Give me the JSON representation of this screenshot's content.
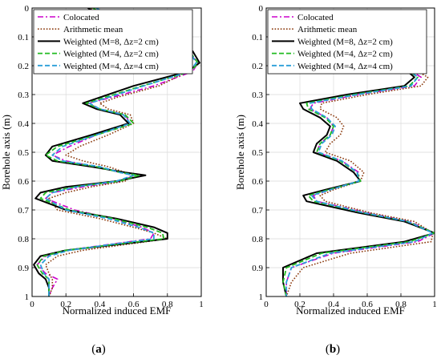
{
  "chart_data": [
    {
      "type": "line",
      "panel_label": "(a)",
      "xlabel": "Normalized induced EMF",
      "ylabel": "Borehole axis (m)",
      "xlim": [
        0,
        1
      ],
      "ylim": [
        1,
        0
      ],
      "y_reversed": true,
      "xticks": [
        "0",
        "0.2",
        "0.4",
        "0.6",
        "0.8",
        "1"
      ],
      "yticks": [
        "0",
        "0.1",
        "0.2",
        "0.3",
        "0.4",
        "0.5",
        "0.6",
        "0.7",
        "0.8",
        "0.9",
        "1"
      ],
      "grid": true,
      "legend_position": "top-left",
      "series": [
        {
          "name": "Colocated",
          "color": "#cc00cc",
          "dash": "dashdot",
          "width": 1.6,
          "x": [
            0.38,
            0.5,
            0.75,
            0.92,
            0.98,
            0.95,
            0.72,
            0.47,
            0.33,
            0.4,
            0.55,
            0.58,
            0.38,
            0.22,
            0.12,
            0.2,
            0.38,
            0.52,
            0.6,
            0.53,
            0.3,
            0.12,
            0.08,
            0.25,
            0.48,
            0.65,
            0.72,
            0.7,
            0.45,
            0.2,
            0.08,
            0.03,
            0.08,
            0.15,
            0.12,
            0.1
          ],
          "y": [
            0,
            0.05,
            0.1,
            0.15,
            0.19,
            0.22,
            0.27,
            0.31,
            0.33,
            0.35,
            0.37,
            0.4,
            0.44,
            0.48,
            0.51,
            0.53,
            0.55,
            0.57,
            0.58,
            0.6,
            0.62,
            0.64,
            0.66,
            0.7,
            0.73,
            0.76,
            0.78,
            0.8,
            0.82,
            0.84,
            0.86,
            0.89,
            0.92,
            0.94,
            0.97,
            1
          ]
        },
        {
          "name": "Arithmetic mean",
          "color": "#8b3a0e",
          "dash": "dotted",
          "width": 1.6,
          "x": [
            0.35,
            0.5,
            0.72,
            0.88,
            0.94,
            0.92,
            0.75,
            0.5,
            0.4,
            0.45,
            0.58,
            0.6,
            0.45,
            0.28,
            0.2,
            0.3,
            0.45,
            0.55,
            0.6,
            0.55,
            0.35,
            0.2,
            0.1,
            0.15,
            0.4,
            0.6,
            0.72,
            0.8,
            0.55,
            0.3,
            0.15,
            0.08,
            0.1,
            0.12,
            0.12,
            0.1
          ],
          "y": [
            0,
            0.05,
            0.1,
            0.15,
            0.19,
            0.22,
            0.27,
            0.31,
            0.33,
            0.35,
            0.37,
            0.4,
            0.44,
            0.48,
            0.51,
            0.53,
            0.55,
            0.57,
            0.58,
            0.6,
            0.62,
            0.64,
            0.66,
            0.7,
            0.73,
            0.76,
            0.78,
            0.8,
            0.82,
            0.84,
            0.86,
            0.89,
            0.92,
            0.94,
            0.97,
            1
          ]
        },
        {
          "name": "Weighted (M=8, Δz=2 cm)",
          "color": "#000000",
          "dash": "solid",
          "width": 2.0,
          "x": [
            0.33,
            0.48,
            0.72,
            0.95,
            0.99,
            0.92,
            0.6,
            0.4,
            0.3,
            0.38,
            0.52,
            0.57,
            0.35,
            0.12,
            0.08,
            0.12,
            0.35,
            0.55,
            0.67,
            0.5,
            0.2,
            0.05,
            0.02,
            0.2,
            0.5,
            0.72,
            0.8,
            0.8,
            0.5,
            0.2,
            0.05,
            0.01,
            0.04,
            0.08,
            0.1,
            0.1
          ],
          "y": [
            0,
            0.05,
            0.1,
            0.15,
            0.19,
            0.22,
            0.27,
            0.31,
            0.33,
            0.35,
            0.37,
            0.4,
            0.44,
            0.48,
            0.51,
            0.53,
            0.55,
            0.57,
            0.58,
            0.6,
            0.62,
            0.64,
            0.66,
            0.7,
            0.73,
            0.76,
            0.78,
            0.8,
            0.82,
            0.84,
            0.86,
            0.89,
            0.92,
            0.94,
            0.97,
            1
          ]
        },
        {
          "name": "Weighted (M=4, Δz=2 cm)",
          "color": "#22bb22",
          "dash": "dashed",
          "width": 1.8,
          "x": [
            0.36,
            0.5,
            0.74,
            0.93,
            0.98,
            0.94,
            0.65,
            0.43,
            0.32,
            0.4,
            0.55,
            0.6,
            0.38,
            0.15,
            0.08,
            0.15,
            0.38,
            0.52,
            0.63,
            0.52,
            0.25,
            0.08,
            0.05,
            0.22,
            0.48,
            0.68,
            0.77,
            0.78,
            0.48,
            0.2,
            0.07,
            0.03,
            0.06,
            0.1,
            0.1,
            0.1
          ],
          "y": [
            0,
            0.05,
            0.1,
            0.15,
            0.19,
            0.22,
            0.27,
            0.31,
            0.33,
            0.35,
            0.37,
            0.4,
            0.44,
            0.48,
            0.51,
            0.53,
            0.55,
            0.57,
            0.58,
            0.6,
            0.62,
            0.64,
            0.66,
            0.7,
            0.73,
            0.76,
            0.78,
            0.8,
            0.82,
            0.84,
            0.86,
            0.89,
            0.92,
            0.94,
            0.97,
            1
          ]
        },
        {
          "name": "Weighted (M=4, Δz=4 cm)",
          "color": "#2b9fd9",
          "dash": "dashed",
          "width": 1.8,
          "x": [
            0.38,
            0.52,
            0.75,
            0.93,
            0.97,
            0.93,
            0.66,
            0.45,
            0.34,
            0.4,
            0.54,
            0.58,
            0.38,
            0.18,
            0.12,
            0.18,
            0.4,
            0.52,
            0.6,
            0.5,
            0.26,
            0.12,
            0.08,
            0.2,
            0.45,
            0.63,
            0.72,
            0.72,
            0.46,
            0.22,
            0.1,
            0.05,
            0.07,
            0.1,
            0.1,
            0.1
          ],
          "y": [
            0,
            0.05,
            0.1,
            0.15,
            0.19,
            0.22,
            0.27,
            0.31,
            0.33,
            0.35,
            0.37,
            0.4,
            0.44,
            0.48,
            0.51,
            0.53,
            0.55,
            0.57,
            0.58,
            0.6,
            0.62,
            0.64,
            0.66,
            0.7,
            0.73,
            0.76,
            0.78,
            0.8,
            0.82,
            0.84,
            0.86,
            0.89,
            0.92,
            0.94,
            0.97,
            1
          ]
        }
      ]
    },
    {
      "type": "line",
      "panel_label": "(b)",
      "xlabel": "Normalized induced EMF",
      "ylabel": "Borehole axis (m)",
      "xlim": [
        0,
        1
      ],
      "ylim": [
        1,
        0
      ],
      "y_reversed": true,
      "xticks": [
        "0",
        "0.2",
        "0.4",
        "0.6",
        "0.8",
        "1"
      ],
      "yticks": [
        "0",
        "0.1",
        "0.2",
        "0.3",
        "0.4",
        "0.5",
        "0.6",
        "0.7",
        "0.8",
        "0.9",
        "1"
      ],
      "grid": true,
      "legend_position": "top-right",
      "series": [
        {
          "name": "Colocated",
          "color": "#cc00cc",
          "dash": "dashdot",
          "width": 1.6,
          "x": [
            0.78,
            0.84,
            0.92,
            0.88,
            0.55,
            0.28,
            0.26,
            0.36,
            0.4,
            0.38,
            0.32,
            0.3,
            0.45,
            0.55,
            0.55,
            0.38,
            0.28,
            0.3,
            0.6,
            0.85,
            1.0,
            0.9,
            0.4,
            0.15,
            0.12,
            0.12
          ],
          "y": [
            0.18,
            0.21,
            0.24,
            0.27,
            0.3,
            0.33,
            0.35,
            0.38,
            0.41,
            0.44,
            0.47,
            0.5,
            0.53,
            0.57,
            0.6,
            0.63,
            0.65,
            0.67,
            0.71,
            0.74,
            0.78,
            0.81,
            0.85,
            0.9,
            0.95,
            1
          ]
        },
        {
          "name": "Arithmetic mean",
          "color": "#8b3a0e",
          "dash": "dotted",
          "width": 1.6,
          "x": [
            0.8,
            0.87,
            0.96,
            0.92,
            0.6,
            0.33,
            0.32,
            0.42,
            0.46,
            0.44,
            0.38,
            0.35,
            0.5,
            0.58,
            0.56,
            0.4,
            0.32,
            0.35,
            0.62,
            0.88,
            0.99,
            0.98,
            0.5,
            0.22,
            0.15,
            0.12
          ],
          "y": [
            0.18,
            0.21,
            0.24,
            0.27,
            0.3,
            0.33,
            0.35,
            0.38,
            0.41,
            0.44,
            0.47,
            0.5,
            0.53,
            0.57,
            0.6,
            0.63,
            0.65,
            0.67,
            0.71,
            0.74,
            0.78,
            0.81,
            0.85,
            0.9,
            0.95,
            1
          ]
        },
        {
          "name": "Weighted (M=8, Δz=2 cm)",
          "color": "#000000",
          "dash": "solid",
          "width": 2.0,
          "x": [
            0.75,
            0.82,
            0.88,
            0.82,
            0.48,
            0.2,
            0.22,
            0.32,
            0.38,
            0.36,
            0.3,
            0.28,
            0.42,
            0.52,
            0.56,
            0.35,
            0.22,
            0.24,
            0.55,
            0.82,
            1.0,
            0.82,
            0.3,
            0.1,
            0.1,
            0.12
          ],
          "y": [
            0.18,
            0.21,
            0.24,
            0.27,
            0.3,
            0.33,
            0.35,
            0.38,
            0.41,
            0.44,
            0.47,
            0.5,
            0.53,
            0.57,
            0.6,
            0.63,
            0.65,
            0.67,
            0.71,
            0.74,
            0.78,
            0.81,
            0.85,
            0.9,
            0.95,
            1
          ]
        },
        {
          "name": "Weighted (M=4, Δz=2 cm)",
          "color": "#22bb22",
          "dash": "dashed",
          "width": 1.8,
          "x": [
            0.76,
            0.83,
            0.9,
            0.85,
            0.52,
            0.24,
            0.25,
            0.35,
            0.4,
            0.38,
            0.32,
            0.3,
            0.44,
            0.54,
            0.56,
            0.37,
            0.25,
            0.28,
            0.58,
            0.84,
            1.0,
            0.85,
            0.33,
            0.12,
            0.1,
            0.12
          ],
          "y": [
            0.18,
            0.21,
            0.24,
            0.27,
            0.3,
            0.33,
            0.35,
            0.38,
            0.41,
            0.44,
            0.47,
            0.5,
            0.53,
            0.57,
            0.6,
            0.63,
            0.65,
            0.67,
            0.71,
            0.74,
            0.78,
            0.81,
            0.85,
            0.9,
            0.95,
            1
          ]
        },
        {
          "name": "Weighted (M=4, Δz=4 cm)",
          "color": "#2b9fd9",
          "dash": "dashed",
          "width": 1.8,
          "x": [
            0.77,
            0.84,
            0.9,
            0.86,
            0.54,
            0.26,
            0.27,
            0.36,
            0.41,
            0.39,
            0.33,
            0.31,
            0.45,
            0.54,
            0.55,
            0.38,
            0.27,
            0.3,
            0.58,
            0.84,
            0.99,
            0.88,
            0.38,
            0.15,
            0.12,
            0.12
          ],
          "y": [
            0.18,
            0.21,
            0.24,
            0.27,
            0.3,
            0.33,
            0.35,
            0.38,
            0.41,
            0.44,
            0.47,
            0.5,
            0.53,
            0.57,
            0.6,
            0.63,
            0.65,
            0.67,
            0.71,
            0.74,
            0.78,
            0.81,
            0.85,
            0.9,
            0.95,
            1
          ]
        }
      ]
    }
  ]
}
